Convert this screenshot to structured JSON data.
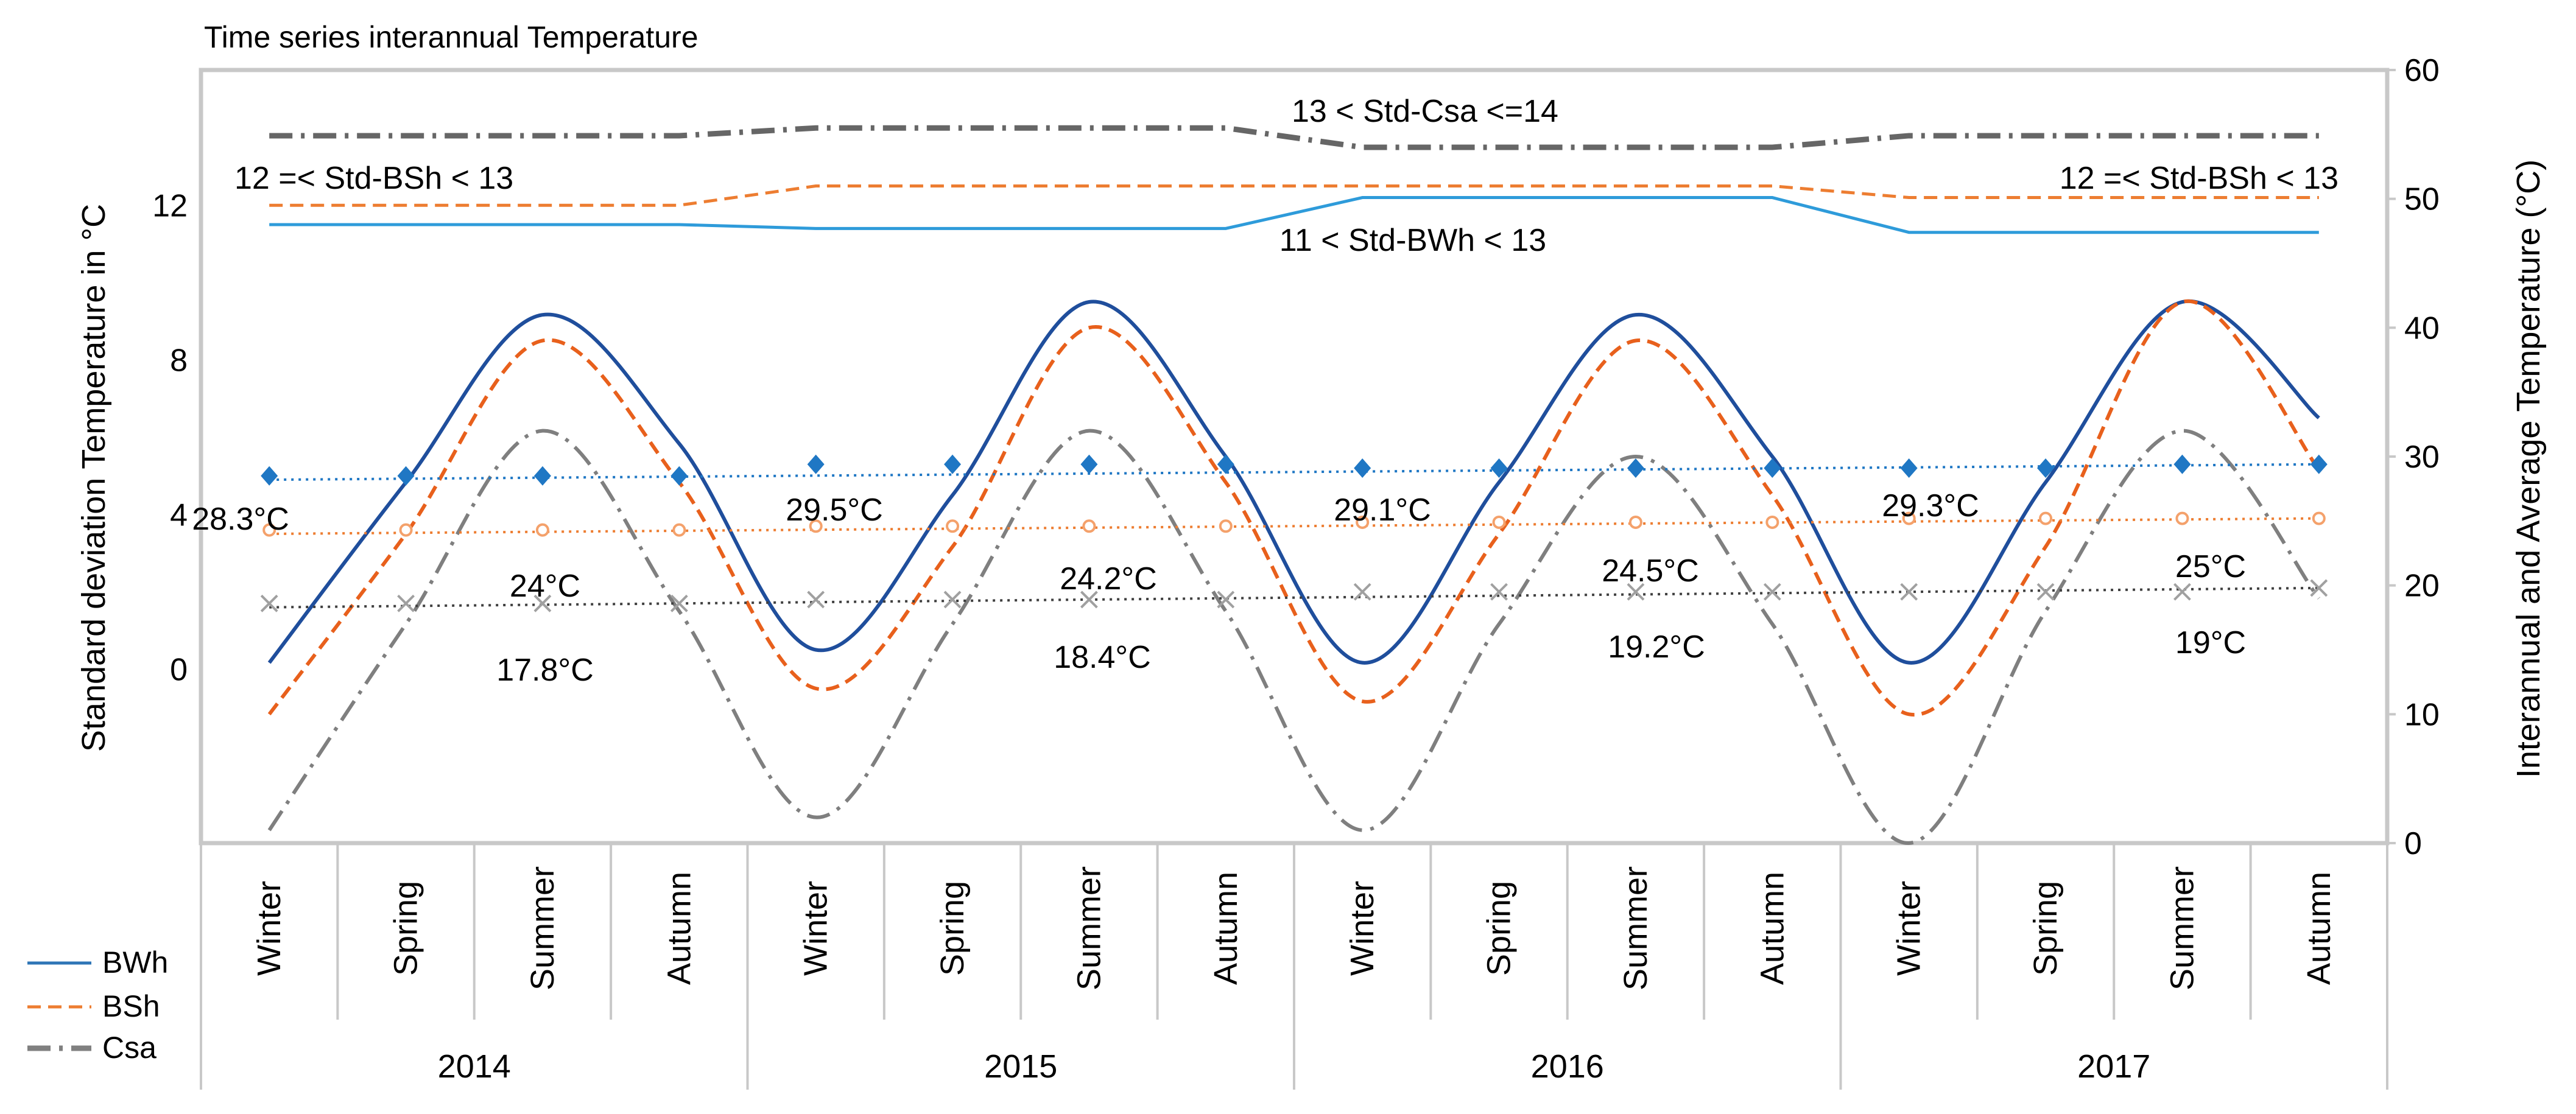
{
  "chart_data": {
    "type": "line",
    "title": "Time series interannual Temperature",
    "ylabel_left": "Standard deviation Temperature in °C",
    "ylabel_right": "Interannual and Average Temperature (°C)",
    "ylim_left": [
      -4.5,
      15.5
    ],
    "ylim_right": [
      0,
      60
    ],
    "yticks_left": [
      0,
      4,
      8,
      12
    ],
    "yticks_right": [
      0,
      10,
      20,
      30,
      40,
      50,
      60
    ],
    "seasons": [
      "Winter",
      "Spring",
      "Summer",
      "Autumn",
      "Winter",
      "Spring",
      "Summer",
      "Autumn",
      "Winter",
      "Spring",
      "Summer",
      "Autumn",
      "Winter",
      "Spring",
      "Summer",
      "Autumn"
    ],
    "years": [
      "2014",
      "2015",
      "2016",
      "2017"
    ],
    "legend": [
      {
        "name": "BWh",
        "color": "#2E75B6",
        "style": "solid"
      },
      {
        "name": "BSh",
        "color": "#ED7D31",
        "style": "dashed"
      },
      {
        "name": "Csa",
        "color": "#808080",
        "style": "dashdot"
      }
    ],
    "std_series": [
      {
        "name": "Std-BWh",
        "axis": "left",
        "color": "#2E9BDA",
        "style": "solid",
        "values": [
          11.5,
          11.5,
          11.5,
          11.5,
          11.4,
          11.4,
          11.4,
          11.4,
          12.2,
          12.2,
          12.2,
          12.2,
          11.3,
          11.3,
          11.3,
          11.3
        ]
      },
      {
        "name": "Std-BSh",
        "axis": "left",
        "color": "#ED7D31",
        "style": "dashed",
        "values": [
          12.0,
          12.0,
          12.0,
          12.0,
          12.5,
          12.5,
          12.5,
          12.5,
          12.5,
          12.5,
          12.5,
          12.5,
          12.2,
          12.2,
          12.2,
          12.2
        ]
      },
      {
        "name": "Std-Csa",
        "axis": "left",
        "color": "#666666",
        "style": "dashdot",
        "values": [
          13.8,
          13.8,
          13.8,
          13.8,
          14.0,
          14.0,
          14.0,
          14.0,
          13.5,
          13.5,
          13.5,
          13.5,
          13.8,
          13.8,
          13.8,
          13.8
        ]
      }
    ],
    "seasonal_series": [
      {
        "name": "BWh",
        "axis": "right",
        "color": "#1F4E9C",
        "style": "solid",
        "values": [
          14,
          28,
          41,
          31,
          15,
          27,
          42,
          30,
          14,
          28,
          41,
          30,
          14,
          28,
          42,
          33
        ]
      },
      {
        "name": "BSh",
        "axis": "right",
        "color": "#E8601C",
        "style": "dashed",
        "values": [
          10,
          24,
          39,
          28,
          12,
          23,
          40,
          28,
          11,
          24,
          39,
          27,
          10,
          23,
          42,
          29
        ]
      },
      {
        "name": "Csa",
        "axis": "right",
        "color": "#7F7F7F",
        "style": "dashdot",
        "values": [
          1,
          17,
          32,
          18,
          2,
          17,
          32,
          18,
          1,
          17,
          30,
          17,
          0,
          18,
          32,
          19
        ]
      }
    ],
    "average_markers": [
      {
        "name": "BWh average",
        "axis": "left",
        "marker": "diamond",
        "color": "#1F77C4",
        "values": [
          5.0,
          5.0,
          5.0,
          5.0,
          5.3,
          5.3,
          5.3,
          5.3,
          5.2,
          5.2,
          5.2,
          5.2,
          5.2,
          5.2,
          5.3,
          5.3
        ]
      },
      {
        "name": "BSh average",
        "axis": "left",
        "marker": "circle",
        "color": "#F4A16B",
        "values": [
          3.6,
          3.6,
          3.6,
          3.6,
          3.7,
          3.7,
          3.7,
          3.7,
          3.8,
          3.8,
          3.8,
          3.8,
          3.9,
          3.9,
          3.9,
          3.9
        ]
      },
      {
        "name": "Csa average",
        "axis": "left",
        "marker": "x",
        "color": "#A0A0A0",
        "values": [
          1.7,
          1.7,
          1.7,
          1.7,
          1.8,
          1.8,
          1.8,
          1.8,
          2.0,
          2.0,
          2.0,
          2.0,
          2.0,
          2.0,
          2.0,
          2.1
        ]
      }
    ],
    "trendlines": [
      {
        "name": "BWh trend",
        "color": "#1F77C4",
        "from": 4.9,
        "to": 5.3
      },
      {
        "name": "BSh trend",
        "color": "#ED7D31",
        "from": 3.5,
        "to": 3.9
      },
      {
        "name": "Csa trend",
        "color": "#404040",
        "from": 1.6,
        "to": 2.1
      }
    ],
    "annotations": [
      {
        "text": "13 < Std-Csa <=14",
        "series": "Std-Csa"
      },
      {
        "text": "12 =< Std-BSh < 13",
        "series": "Std-BSh"
      },
      {
        "text": "12 =< Std-BSh < 13",
        "series": "Std-BSh"
      },
      {
        "text": "11 < Std-BWh < 13",
        "series": "Std-BWh"
      },
      {
        "text": "28.3°C",
        "year": "2014",
        "series": "BWh"
      },
      {
        "text": "29.5°C",
        "year": "2015",
        "series": "BWh"
      },
      {
        "text": "29.1°C",
        "year": "2016",
        "series": "BWh"
      },
      {
        "text": "29.3°C",
        "year": "2017",
        "series": "BWh"
      },
      {
        "text": "24°C",
        "year": "2014",
        "series": "BSh"
      },
      {
        "text": "24.2°C",
        "year": "2015",
        "series": "BSh"
      },
      {
        "text": "24.5°C",
        "year": "2016",
        "series": "BSh"
      },
      {
        "text": "25°C",
        "year": "2017",
        "series": "BSh"
      },
      {
        "text": "17.8°C",
        "year": "2014",
        "series": "Csa"
      },
      {
        "text": "18.4°C",
        "year": "2015",
        "series": "Csa"
      },
      {
        "text": "19.2°C",
        "year": "2016",
        "series": "Csa"
      },
      {
        "text": "19°C",
        "year": "2017",
        "series": "Csa"
      }
    ]
  }
}
